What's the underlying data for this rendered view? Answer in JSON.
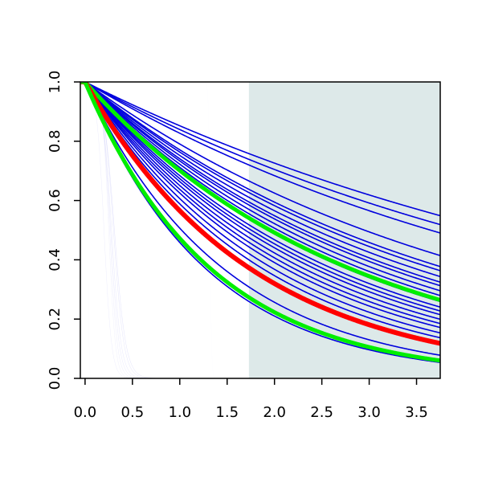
{
  "chart_data": {
    "type": "line",
    "title": "",
    "xlabel": "",
    "ylabel": "",
    "xlim": [
      -0.05,
      3.75
    ],
    "ylim": [
      0.0,
      1.0
    ],
    "x_ticks": [
      {
        "value": 0.0,
        "label": "0.0"
      },
      {
        "value": 0.5,
        "label": "0.5"
      },
      {
        "value": 1.0,
        "label": "1.0"
      },
      {
        "value": 1.5,
        "label": "1.5"
      },
      {
        "value": 2.0,
        "label": "2.0"
      },
      {
        "value": 2.5,
        "label": "2.5"
      },
      {
        "value": 3.0,
        "label": "3.0"
      },
      {
        "value": 3.5,
        "label": "3.5"
      }
    ],
    "y_ticks": [
      {
        "value": 0.0,
        "label": "0.0"
      },
      {
        "value": 0.2,
        "label": "0.2"
      },
      {
        "value": 0.4,
        "label": "0.4"
      },
      {
        "value": 0.6,
        "label": "0.6"
      },
      {
        "value": 0.8,
        "label": "0.8"
      },
      {
        "value": 1.0,
        "label": "1.0"
      }
    ],
    "shaded_region": {
      "x_start": 1.73,
      "x_end": 3.75,
      "color": "#dde9e9"
    },
    "colors": {
      "blue": "#0000dd",
      "red": "#ff0000",
      "green": "#00ee00"
    },
    "curves": [
      {
        "kind": "exp",
        "rate": 0.16,
        "color": "blue"
      },
      {
        "kind": "exp",
        "rate": 0.175,
        "color": "blue"
      },
      {
        "kind": "exp",
        "rate": 0.19,
        "color": "blue"
      },
      {
        "kind": "exp",
        "rate": 0.235,
        "color": "blue"
      },
      {
        "kind": "exp",
        "rate": 0.26,
        "color": "blue"
      },
      {
        "kind": "exp",
        "rate": 0.27,
        "color": "blue"
      },
      {
        "kind": "exp",
        "rate": 0.285,
        "color": "blue"
      },
      {
        "kind": "exp",
        "rate": 0.3,
        "color": "blue"
      },
      {
        "kind": "exp",
        "rate": 0.31,
        "color": "blue"
      },
      {
        "kind": "exp",
        "rate": 0.325,
        "color": "blue"
      },
      {
        "kind": "exp",
        "rate": 0.34,
        "color": "blue"
      },
      {
        "kind": "exp",
        "rate": 0.36,
        "color": "blue"
      },
      {
        "kind": "exp",
        "rate": 0.38,
        "color": "blue"
      },
      {
        "kind": "exp",
        "rate": 0.395,
        "color": "blue"
      },
      {
        "kind": "exp",
        "rate": 0.41,
        "color": "blue"
      },
      {
        "kind": "exp",
        "rate": 0.43,
        "color": "blue"
      },
      {
        "kind": "exp",
        "rate": 0.45,
        "color": "blue"
      },
      {
        "kind": "exp",
        "rate": 0.47,
        "color": "blue"
      },
      {
        "kind": "exp",
        "rate": 0.5,
        "color": "blue"
      },
      {
        "kind": "exp",
        "rate": 0.53,
        "color": "blue"
      },
      {
        "kind": "exp",
        "rate": 0.68,
        "color": "blue"
      },
      {
        "kind": "exp",
        "rate": 0.78,
        "color": "blue"
      },
      {
        "kind": "sigmoid",
        "center": 0.25,
        "width": 0.035,
        "color": "blue"
      },
      {
        "kind": "sigmoid",
        "center": 0.26,
        "width": 0.04,
        "color": "blue"
      },
      {
        "kind": "sigmoid",
        "center": 0.27,
        "width": 0.045,
        "color": "blue"
      },
      {
        "kind": "sigmoid",
        "center": 0.28,
        "width": 0.05,
        "color": "blue"
      },
      {
        "kind": "sigmoid",
        "center": 0.3,
        "width": 0.055,
        "color": "blue"
      },
      {
        "kind": "sigmoid",
        "center": 0.31,
        "width": 0.06,
        "color": "blue"
      },
      {
        "kind": "sigmoid",
        "center": 0.2,
        "width": 0.04,
        "color": "blue"
      },
      {
        "kind": "sigmoid",
        "center": 0.03,
        "width": 0.006,
        "color": "blue"
      },
      {
        "kind": "sigmoid",
        "center": 1.32,
        "width": 0.008,
        "color": "blue"
      },
      {
        "kind": "exp",
        "rate": 0.355,
        "color": "green",
        "width": 5
      },
      {
        "kind": "exp",
        "rate": 0.57,
        "color": "red",
        "width": 6
      },
      {
        "kind": "exp",
        "rate": 0.75,
        "color": "green",
        "width": 5
      }
    ]
  }
}
